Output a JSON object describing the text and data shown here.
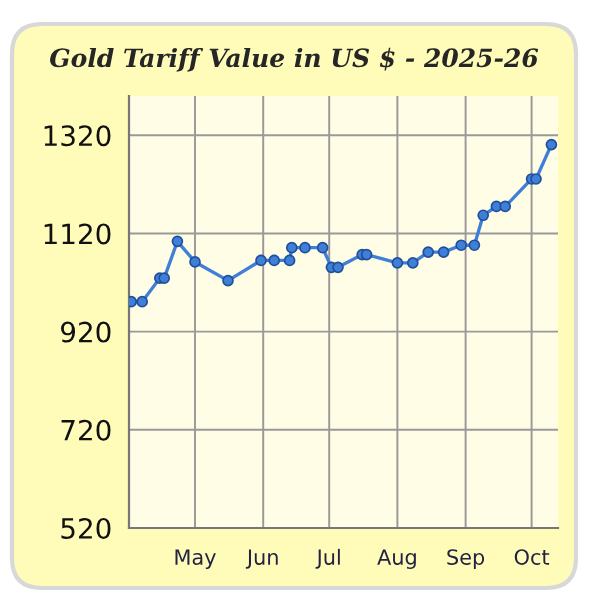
{
  "chart_data": {
    "type": "line",
    "title": "Gold Tariff Value in US $ - 2025-26",
    "x": [
      "2025-04-02",
      "2025-04-07",
      "2025-04-15",
      "2025-04-17",
      "2025-04-23",
      "2025-05-01",
      "2025-05-16",
      "2025-05-31",
      "2025-06-06",
      "2025-06-13",
      "2025-06-14",
      "2025-06-20",
      "2025-06-28",
      "2025-07-02",
      "2025-07-05",
      "2025-07-16",
      "2025-07-18",
      "2025-08-01",
      "2025-08-08",
      "2025-08-15",
      "2025-08-22",
      "2025-08-30",
      "2025-09-05",
      "2025-09-09",
      "2025-09-15",
      "2025-09-19",
      "2025-10-01",
      "2025-10-03",
      "2025-10-10"
    ],
    "series": [
      {
        "color": "#3f7fd8",
        "values": [
          981,
          981,
          1029,
          1029,
          1104,
          1062,
          1024,
          1065,
          1065,
          1065,
          1091,
          1091,
          1091,
          1051,
          1051,
          1077,
          1077,
          1060,
          1060,
          1082,
          1082,
          1096,
          1096,
          1157,
          1175,
          1175,
          1231,
          1231,
          1301
        ]
      }
    ],
    "xlim": [
      "2025-04-01",
      "2025-10-13"
    ],
    "xticks": [
      {
        "value": "2025-05-01",
        "label": "May"
      },
      {
        "value": "2025-06-01",
        "label": "Jun"
      },
      {
        "value": "2025-07-01",
        "label": "Jul"
      },
      {
        "value": "2025-08-01",
        "label": "Aug"
      },
      {
        "value": "2025-09-01",
        "label": "Sep"
      },
      {
        "value": "2025-10-01",
        "label": "Oct"
      }
    ],
    "ylim": [
      520,
      1400
    ],
    "yticks": [
      520,
      720,
      920,
      1120,
      1320
    ],
    "grid": true,
    "marker": "circle",
    "line_style": "solid"
  }
}
